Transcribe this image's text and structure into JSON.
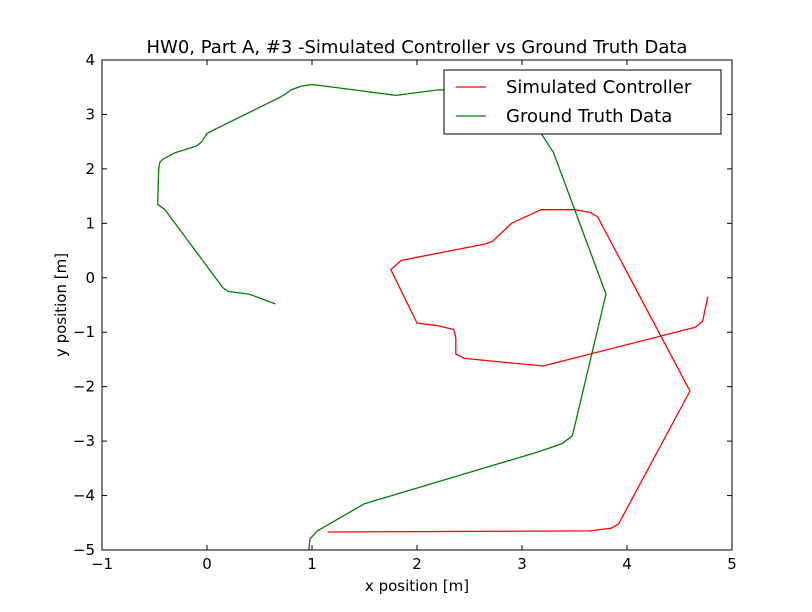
{
  "chart_data": {
    "type": "line",
    "title": "HW0, Part A, #3 -Simulated Controller vs Ground Truth Data",
    "xlabel": "x position [m]",
    "ylabel": "y position [m]",
    "xlim": [
      -1,
      5
    ],
    "ylim": [
      -5,
      4
    ],
    "xticks": [
      -1,
      0,
      1,
      2,
      3,
      4,
      5
    ],
    "yticks": [
      -5,
      -4,
      -3,
      -2,
      -1,
      0,
      1,
      2,
      3,
      4
    ],
    "xtick_labels": [
      "−1",
      "0",
      "1",
      "2",
      "3",
      "4",
      "5"
    ],
    "ytick_labels": [
      "−5",
      "−4",
      "−3",
      "−2",
      "−1",
      "0",
      "1",
      "2",
      "3",
      "4"
    ],
    "grid": false,
    "legend": "top-right",
    "series": [
      {
        "name": "Simulated Controller",
        "color": "#ff0000",
        "points": [
          [
            4.77,
            -0.35
          ],
          [
            4.72,
            -0.8
          ],
          [
            4.65,
            -0.91
          ],
          [
            3.2,
            -1.62
          ],
          [
            2.45,
            -1.48
          ],
          [
            2.37,
            -1.4
          ],
          [
            2.37,
            -1.1
          ],
          [
            2.35,
            -0.95
          ],
          [
            2.2,
            -0.88
          ],
          [
            2.0,
            -0.83
          ],
          [
            1.75,
            0.15
          ],
          [
            1.85,
            0.32
          ],
          [
            2.65,
            0.62
          ],
          [
            2.72,
            0.67
          ],
          [
            2.9,
            1.0
          ],
          [
            3.18,
            1.25
          ],
          [
            3.5,
            1.25
          ],
          [
            3.65,
            1.2
          ],
          [
            3.72,
            1.12
          ],
          [
            4.6,
            -2.08
          ],
          [
            3.92,
            -4.52
          ],
          [
            3.85,
            -4.6
          ],
          [
            3.65,
            -4.65
          ],
          [
            1.15,
            -4.67
          ]
        ]
      },
      {
        "name": "Ground Truth Data",
        "color": "#007f00",
        "points": [
          [
            0.65,
            -0.48
          ],
          [
            0.4,
            -0.3
          ],
          [
            0.2,
            -0.25
          ],
          [
            0.15,
            -0.18
          ],
          [
            -0.4,
            1.25
          ],
          [
            -0.47,
            1.35
          ],
          [
            -0.46,
            2.0
          ],
          [
            -0.45,
            2.12
          ],
          [
            -0.42,
            2.18
          ],
          [
            -0.3,
            2.3
          ],
          [
            -0.1,
            2.42
          ],
          [
            -0.05,
            2.5
          ],
          [
            0.0,
            2.65
          ],
          [
            0.1,
            2.75
          ],
          [
            0.7,
            3.32
          ],
          [
            0.75,
            3.38
          ],
          [
            0.8,
            3.45
          ],
          [
            0.9,
            3.52
          ],
          [
            1.0,
            3.55
          ],
          [
            1.4,
            3.45
          ],
          [
            1.8,
            3.35
          ],
          [
            2.2,
            3.45
          ],
          [
            2.8,
            3.45
          ],
          [
            3.0,
            3.2
          ],
          [
            3.3,
            2.3
          ],
          [
            3.8,
            -0.3
          ],
          [
            3.48,
            -2.9
          ],
          [
            3.38,
            -3.05
          ],
          [
            3.15,
            -3.2
          ],
          [
            1.5,
            -4.15
          ],
          [
            1.05,
            -4.65
          ],
          [
            0.98,
            -4.8
          ],
          [
            0.97,
            -5.0
          ]
        ]
      }
    ]
  }
}
